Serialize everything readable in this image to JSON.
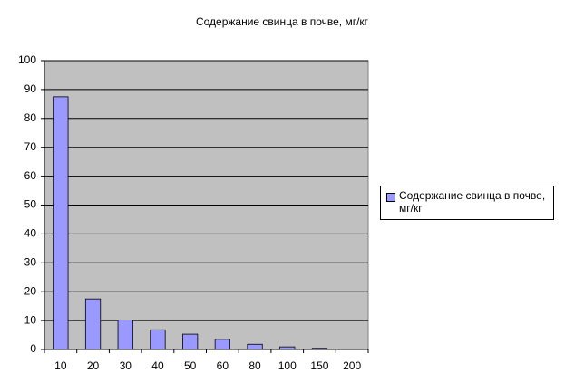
{
  "chart_data": {
    "type": "bar",
    "title": "Содержание свинца в почве, мг/кг",
    "categories": [
      "10",
      "20",
      "30",
      "40",
      "50",
      "60",
      "80",
      "100",
      "150",
      "200"
    ],
    "series": [
      {
        "name": "Содержание свинца в почве, мг/кг",
        "color": "#9999ff",
        "values": [
          87.5,
          17.5,
          10.2,
          6.8,
          5.3,
          3.5,
          1.8,
          0.9,
          0.4,
          0
        ]
      }
    ],
    "ylim": [
      0,
      100
    ],
    "yticks": [
      0,
      10,
      20,
      30,
      40,
      50,
      60,
      70,
      80,
      90,
      100
    ],
    "grid": true
  }
}
